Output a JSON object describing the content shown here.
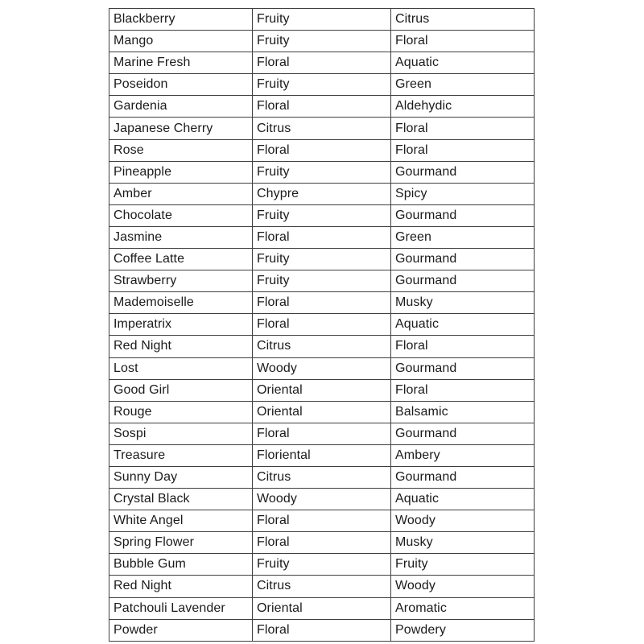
{
  "table": {
    "rows": [
      [
        "Blackberry",
        "Fruity",
        "Citrus"
      ],
      [
        "Mango",
        "Fruity",
        "Floral"
      ],
      [
        "Marine Fresh",
        "Floral",
        "Aquatic"
      ],
      [
        "Poseidon",
        "Fruity",
        "Green"
      ],
      [
        "Gardenia",
        "Floral",
        "Aldehydic"
      ],
      [
        "Japanese Cherry",
        "Citrus",
        "Floral"
      ],
      [
        "Rose",
        "Floral",
        "Floral"
      ],
      [
        "Pineapple",
        "Fruity",
        "Gourmand"
      ],
      [
        "Amber",
        "Chypre",
        "Spicy"
      ],
      [
        "Chocolate",
        "Fruity",
        "Gourmand"
      ],
      [
        "Jasmine",
        "Floral",
        "Green"
      ],
      [
        "Coffee Latte",
        "Fruity",
        "Gourmand"
      ],
      [
        "Strawberry",
        "Fruity",
        "Gourmand"
      ],
      [
        "Mademoiselle",
        "Floral",
        "Musky"
      ],
      [
        "Imperatrix",
        "Floral",
        "Aquatic"
      ],
      [
        "Red Night",
        "Citrus",
        "Floral"
      ],
      [
        "Lost",
        "Woody",
        "Gourmand"
      ],
      [
        "Good Girl",
        "Oriental",
        "Floral"
      ],
      [
        "Rouge",
        "Oriental",
        "Balsamic"
      ],
      [
        "Sospi",
        "Floral",
        "Gourmand"
      ],
      [
        "Treasure",
        "Floriental",
        "Ambery"
      ],
      [
        "Sunny Day",
        "Citrus",
        "Gourmand"
      ],
      [
        "Crystal Black",
        "Woody",
        "Aquatic"
      ],
      [
        "White Angel",
        "Floral",
        "Woody"
      ],
      [
        "Spring Flower",
        "Floral",
        "Musky"
      ],
      [
        "Bubble Gum",
        "Fruity",
        "Fruity"
      ],
      [
        "Red Night",
        "Citrus",
        "Woody"
      ],
      [
        "Patchouli Lavender",
        "Oriental",
        "Aromatic"
      ],
      [
        "Powder",
        "Floral",
        "Powdery"
      ]
    ],
    "colors": {
      "border": "#3f3f3f",
      "text": "#1b1b1b",
      "background": "#ffffff"
    }
  }
}
